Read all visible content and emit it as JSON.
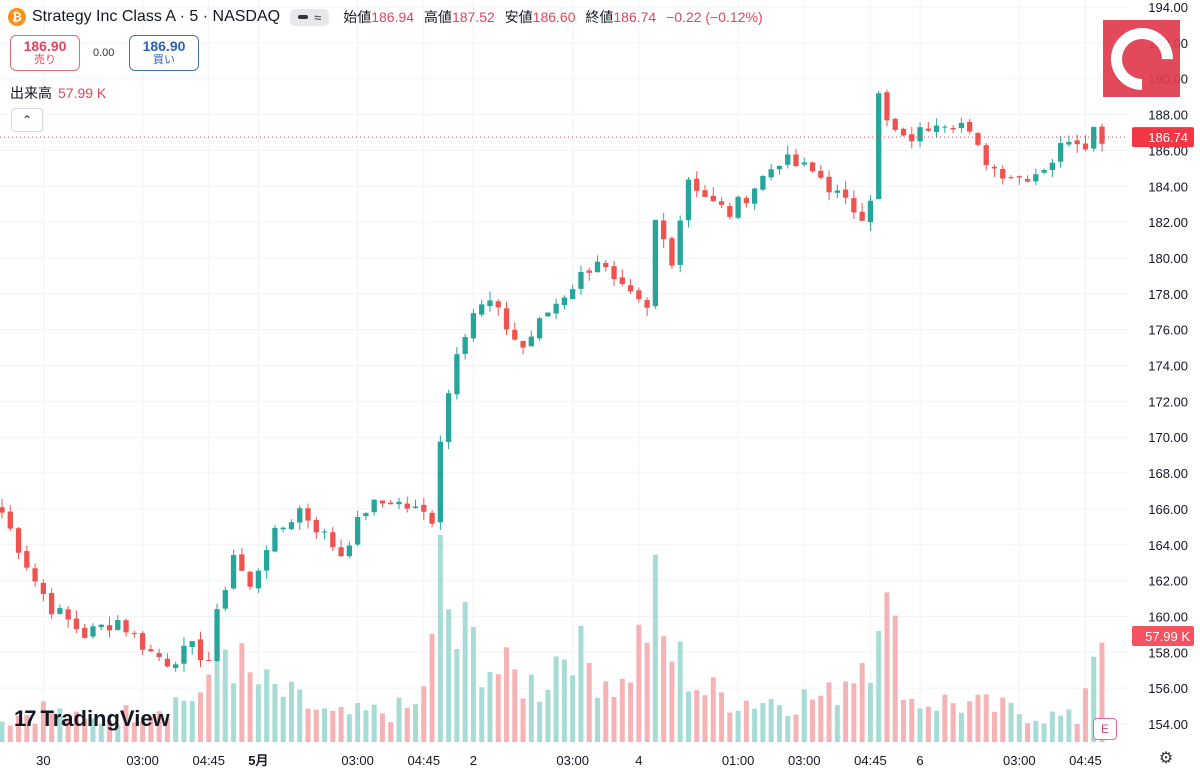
{
  "header": {
    "symbol_icon": "bitcoin-icon",
    "symbol_icon_glyph": "₿",
    "title": "Strategy Inc Class A · 5 · NASDAQ",
    "approx_glyph": "≈",
    "open_label": "始値",
    "open_value": "186.94",
    "high_label": "高値",
    "high_value": "187.52",
    "low_label": "安値",
    "low_value": "186.60",
    "close_label": "終値",
    "close_value": "186.74",
    "change": "−0.22 (−0.12%)"
  },
  "trade": {
    "sell_price": "186.90",
    "sell_label": "売り",
    "spread": "0.00",
    "buy_price": "186.90",
    "buy_label": "買い"
  },
  "volume_legend": {
    "label": "出来高",
    "value": "57.99 K"
  },
  "collapse_icon": "chevron-up-icon",
  "collapse_glyph": "⌃",
  "watermark": "TradingView",
  "watermark_mark": "17",
  "earnings_icon": "E",
  "settings_glyph": "⚙",
  "colors": {
    "up": "#26a69a",
    "down": "#ef5350",
    "grid": "#f0f3fa",
    "axis_text": "#131722",
    "price_label_bg": "#f23645",
    "volume_label_bg": "#f7525f"
  },
  "chart_data": {
    "type": "candlestick",
    "title": "",
    "interval": "5",
    "ylim": [
      153,
      194
    ],
    "yticks": [
      154,
      156,
      158,
      160,
      162,
      164,
      166,
      168,
      170,
      172,
      174,
      176,
      178,
      180,
      182,
      184,
      186,
      188,
      190,
      192,
      194
    ],
    "ytick_labels": [
      "154.00",
      "156.00",
      "158.00",
      "160.00",
      "162.00",
      "164.00",
      "166.00",
      "168.00",
      "170.00",
      "172.00",
      "174.00",
      "176.00",
      "178.00",
      "180.00",
      "182.00",
      "184.00",
      "186.00",
      "188.00",
      "190.00",
      "192.00",
      "194.00"
    ],
    "xticks": [
      {
        "index": 5,
        "label": "30"
      },
      {
        "index": 17,
        "label": "03:00"
      },
      {
        "index": 25,
        "label": "04:45"
      },
      {
        "index": 31,
        "label": "5月",
        "bold": true
      },
      {
        "index": 43,
        "label": "03:00"
      },
      {
        "index": 51,
        "label": "04:45"
      },
      {
        "index": 57,
        "label": "2"
      },
      {
        "index": 69,
        "label": "03:00"
      },
      {
        "index": 77,
        "label": "4"
      },
      {
        "index": 89,
        "label": "01:00"
      },
      {
        "index": 97,
        "label": "03:00"
      },
      {
        "index": 105,
        "label": "04:45"
      },
      {
        "index": 111,
        "label": "6"
      },
      {
        "index": 123,
        "label": "03:00"
      },
      {
        "index": 131,
        "label": "04:45"
      }
    ],
    "last_price": "186.74",
    "last_volume": "57.99 K",
    "close_anchors": [
      [
        0,
        165.8
      ],
      [
        4,
        162.0
      ],
      [
        6,
        160.5
      ],
      [
        10,
        159.0
      ],
      [
        14,
        159.8
      ],
      [
        18,
        158.0
      ],
      [
        20,
        157.5
      ],
      [
        23,
        158.2
      ],
      [
        25,
        157.6
      ],
      [
        26,
        160.0
      ],
      [
        28,
        163.5
      ],
      [
        30,
        161.5
      ],
      [
        32,
        164.0
      ],
      [
        36,
        166.0
      ],
      [
        39,
        164.5
      ],
      [
        41,
        163.5
      ],
      [
        44,
        166.0
      ],
      [
        47,
        166.5
      ],
      [
        52,
        165.5
      ],
      [
        53,
        170.0
      ],
      [
        55,
        175.0
      ],
      [
        57,
        177.0
      ],
      [
        59,
        177.5
      ],
      [
        62,
        175.5
      ],
      [
        63,
        175.0
      ],
      [
        66,
        177.0
      ],
      [
        69,
        178.5
      ],
      [
        72,
        180.0
      ],
      [
        74,
        178.5
      ],
      [
        78,
        177.0
      ],
      [
        79,
        182.0
      ],
      [
        81,
        180.0
      ],
      [
        83,
        184.5
      ],
      [
        86,
        183.0
      ],
      [
        88,
        182.5
      ],
      [
        91,
        184.0
      ],
      [
        94,
        185.5
      ],
      [
        97,
        185.0
      ],
      [
        99,
        184.5
      ],
      [
        102,
        183.0
      ],
      [
        104,
        182.5
      ],
      [
        105,
        183.5
      ],
      [
        106,
        189.0
      ],
      [
        107,
        187.5
      ],
      [
        109,
        186.5
      ],
      [
        111,
        187.0
      ],
      [
        113,
        187.8
      ],
      [
        116,
        187.5
      ],
      [
        118,
        186.0
      ],
      [
        120,
        185.0
      ],
      [
        123,
        184.5
      ],
      [
        125,
        184.8
      ],
      [
        127,
        185.5
      ],
      [
        129,
        186.8
      ],
      [
        131,
        186.5
      ],
      [
        132,
        187.2
      ],
      [
        133,
        186.74
      ]
    ],
    "volume_scale_max": 57.99,
    "volume_anchors": [
      [
        0,
        8
      ],
      [
        5,
        12
      ],
      [
        10,
        7
      ],
      [
        15,
        10
      ],
      [
        20,
        14
      ],
      [
        25,
        18
      ],
      [
        26,
        40
      ],
      [
        30,
        22
      ],
      [
        40,
        9
      ],
      [
        50,
        12
      ],
      [
        52,
        32
      ],
      [
        53,
        60
      ],
      [
        55,
        35
      ],
      [
        56,
        38
      ],
      [
        60,
        25
      ],
      [
        65,
        20
      ],
      [
        69,
        40
      ],
      [
        70,
        30
      ],
      [
        75,
        20
      ],
      [
        79,
        50
      ],
      [
        80,
        35
      ],
      [
        85,
        18
      ],
      [
        90,
        15
      ],
      [
        100,
        16
      ],
      [
        105,
        35
      ],
      [
        106,
        58
      ],
      [
        107,
        45
      ],
      [
        110,
        15
      ],
      [
        115,
        14
      ],
      [
        120,
        12
      ],
      [
        125,
        10
      ],
      [
        130,
        8
      ],
      [
        133,
        50
      ]
    ]
  }
}
